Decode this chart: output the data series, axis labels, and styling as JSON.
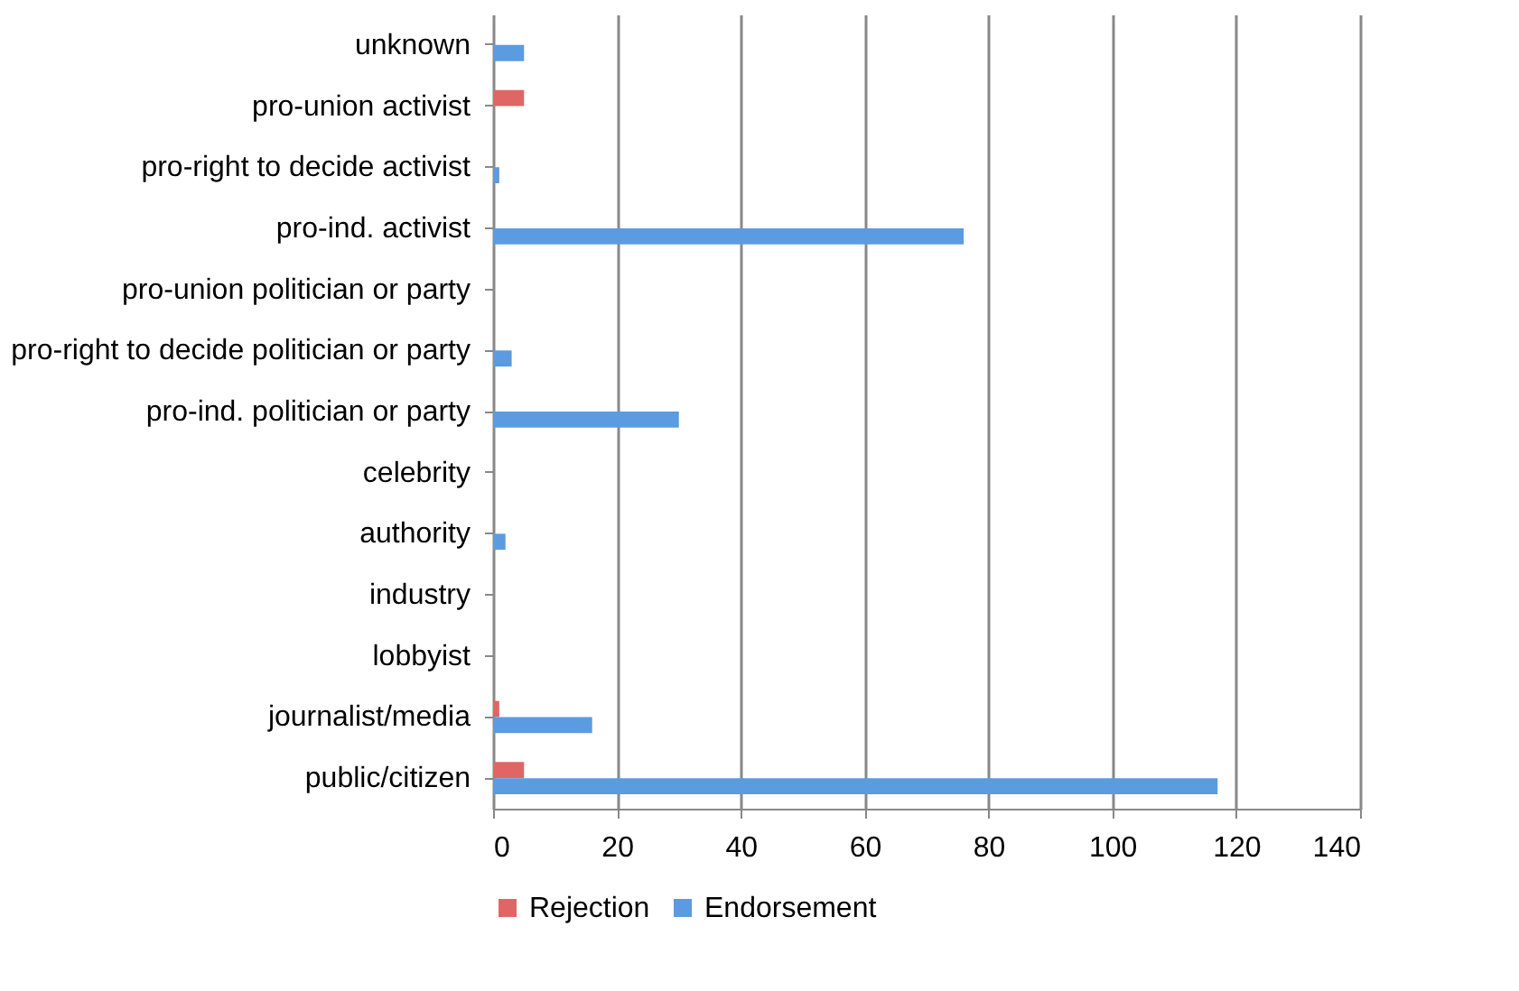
{
  "chart_data": {
    "type": "bar",
    "orientation": "horizontal",
    "categories": [
      "unknown",
      "pro-union activist",
      "pro-right to decide activist",
      "pro-ind. activist",
      "pro-union politician or party",
      "pro-right to decide politician or party",
      "pro-ind. politician or party",
      "celebrity",
      "authority",
      "industry",
      "lobbyist",
      "journalist/media",
      "public/citizen"
    ],
    "series": [
      {
        "name": "Rejection",
        "color": "#e06666",
        "values": [
          0,
          5,
          0,
          0,
          0,
          0,
          0,
          0,
          0,
          0,
          0,
          1,
          5
        ]
      },
      {
        "name": "Endorsement",
        "color": "#5b9be0",
        "values": [
          5,
          0,
          1,
          76,
          0,
          3,
          30,
          0,
          2,
          0,
          0,
          16,
          117
        ]
      }
    ],
    "xlim": [
      0,
      140
    ],
    "xticks": [
      0,
      20,
      40,
      60,
      80,
      100,
      120,
      140
    ],
    "grid": "x",
    "legend": "bottom"
  }
}
